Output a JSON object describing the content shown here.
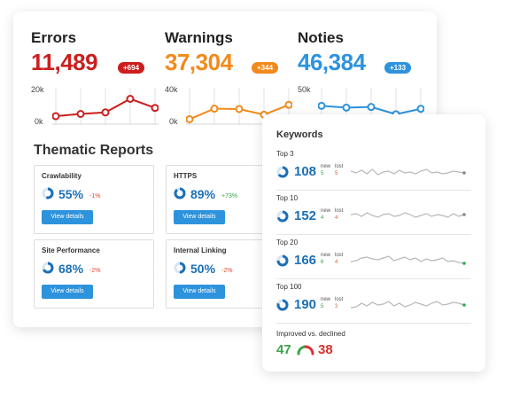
{
  "metrics": [
    {
      "label": "Errors",
      "value": "11,489",
      "badge": "+694",
      "color": "#cc1e1e",
      "ymax_label": "20k",
      "ymin_label": "0k",
      "ymax": 20000,
      "points": [
        3500,
        5000,
        6000,
        15000,
        9000
      ]
    },
    {
      "label": "Warnings",
      "value": "37,304",
      "badge": "+344",
      "color": "#f28a1b",
      "ymax_label": "40k",
      "ymin_label": "0k",
      "ymax": 40000,
      "points": [
        3000,
        17000,
        16500,
        9000,
        22000
      ]
    },
    {
      "label": "Noties",
      "value": "46,384",
      "badge": "+133",
      "color": "#2e93dd",
      "ymax_label": "50k",
      "ymin_label": "0k",
      "ymax": 50000,
      "points": [
        26000,
        23000,
        24000,
        12000,
        21000
      ]
    }
  ],
  "thematic": {
    "title": "Thematic Reports",
    "button_label": "View details",
    "reports": [
      {
        "name": "Crawlability",
        "percent": "55%",
        "percent_value": 55,
        "delta": "-1%",
        "delta_color": "#e0473b"
      },
      {
        "name": "HTTPS",
        "percent": "89%",
        "percent_value": 89,
        "delta": "+73%",
        "delta_color": "#2eaa44"
      },
      {
        "name": "Site Performance",
        "percent": "68%",
        "percent_value": 68,
        "delta": "-2%",
        "delta_color": "#e0473b"
      },
      {
        "name": "Internal Linking",
        "percent": "50%",
        "percent_value": 50,
        "delta": "-2%",
        "delta_color": "#e0473b"
      }
    ]
  },
  "keywords": {
    "title": "Keywords",
    "new_label": "new",
    "lost_label": "lost",
    "rows": [
      {
        "label": "Top 3",
        "value": "108",
        "new": "5",
        "lost": "5",
        "ring_value": 65,
        "end_color": "#888888"
      },
      {
        "label": "Top 10",
        "value": "152",
        "new": "4",
        "lost": "4",
        "ring_value": 70,
        "end_color": "#888888"
      },
      {
        "label": "Top 20",
        "value": "166",
        "new": "6",
        "lost": "4",
        "ring_value": 75,
        "end_color": "#2eaa44"
      },
      {
        "label": "Top 100",
        "value": "190",
        "new": "5",
        "lost": "3",
        "ring_value": 80,
        "end_color": "#2eaa44"
      }
    ],
    "improved_label": "Improved vs. declined",
    "improved": "47",
    "declined": "38"
  }
}
